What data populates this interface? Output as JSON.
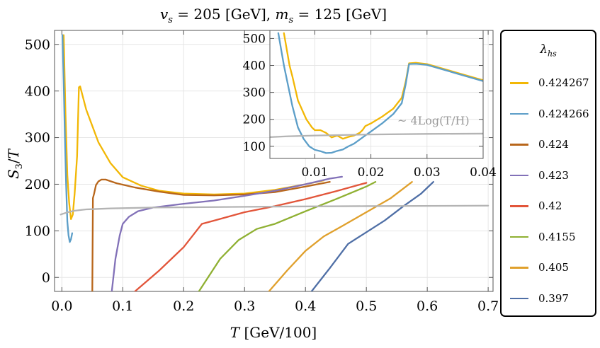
{
  "chart_data": [
    {
      "type": "line",
      "title": "v_s = 205 [GeV], m_s = 125 [GeV]",
      "title_parts": [
        "v",
        "s",
        " = 205 [GeV],  ",
        "m",
        "s",
        " = 125 [GeV]"
      ],
      "xlabel": "T [GeV/100]",
      "xlabel_parts": [
        "T",
        " [GeV/100]"
      ],
      "ylabel": "S_3/T",
      "ylabel_parts": [
        "S",
        "3",
        "/",
        "T"
      ],
      "xlim": [
        -0.012,
        0.708
      ],
      "ylim": [
        -30,
        530
      ],
      "xticks": [
        0.0,
        0.1,
        0.2,
        0.3,
        0.4,
        0.5,
        0.6,
        0.7
      ],
      "xtick_labels": [
        "0.0",
        "0.1",
        "0.2",
        "0.3",
        "0.4",
        "0.5",
        "0.6",
        "0.7"
      ],
      "yticks": [
        0,
        100,
        200,
        300,
        400,
        500
      ],
      "ytick_labels": [
        "0",
        "100",
        "200",
        "300",
        "400",
        "500"
      ],
      "grid": true,
      "legend": {
        "title": "λ_hs",
        "title_parts": [
          "λ",
          "hs"
        ],
        "placement": "right, outside plot"
      },
      "series": [
        {
          "name": "0.424267",
          "color": "#f2b705",
          "points": [
            [
              0.003,
              520
            ],
            [
              0.006,
              350
            ],
            [
              0.009,
              220
            ],
            [
              0.012,
              160
            ],
            [
              0.015,
              125
            ],
            [
              0.018,
              135
            ],
            [
              0.021,
              180
            ],
            [
              0.025,
              260
            ],
            [
              0.028,
              408
            ],
            [
              0.03,
              410
            ],
            [
              0.04,
              360
            ],
            [
              0.06,
              290
            ],
            [
              0.08,
              245
            ],
            [
              0.1,
              215
            ],
            [
              0.13,
              197
            ],
            [
              0.16,
              186
            ],
            [
              0.2,
              180
            ],
            [
              0.25,
              178
            ],
            [
              0.3,
              180
            ],
            [
              0.35,
              188
            ],
            [
              0.4,
              200
            ],
            [
              0.43,
              208
            ]
          ]
        },
        {
          "name": "0.424266",
          "color": "#5c9ec8",
          "points": [
            [
              0.001,
              520
            ],
            [
              0.003,
              420
            ],
            [
              0.005,
              300
            ],
            [
              0.007,
              200
            ],
            [
              0.009,
              120
            ],
            [
              0.011,
              90
            ],
            [
              0.013,
              76
            ],
            [
              0.015,
              82
            ],
            [
              0.017,
              95
            ]
          ]
        },
        {
          "name": "0.424",
          "color": "#b8661b",
          "points": [
            [
              0.05,
              -30
            ],
            [
              0.051,
              170
            ],
            [
              0.053,
              180
            ],
            [
              0.056,
              198
            ],
            [
              0.06,
              206
            ],
            [
              0.065,
              210
            ],
            [
              0.072,
              210
            ],
            [
              0.09,
              202
            ],
            [
              0.12,
              193
            ],
            [
              0.16,
              184
            ],
            [
              0.2,
              177
            ],
            [
              0.25,
              176
            ],
            [
              0.3,
              178
            ],
            [
              0.35,
              183
            ],
            [
              0.4,
              195
            ],
            [
              0.44,
              205
            ]
          ]
        },
        {
          "name": "0.423",
          "color": "#8271b8",
          "points": [
            [
              0.082,
              -30
            ],
            [
              0.088,
              40
            ],
            [
              0.095,
              90
            ],
            [
              0.1,
              115
            ],
            [
              0.11,
              130
            ],
            [
              0.125,
              142
            ],
            [
              0.15,
              150
            ],
            [
              0.2,
              158
            ],
            [
              0.25,
              165
            ],
            [
              0.3,
              175
            ],
            [
              0.35,
              186
            ],
            [
              0.4,
              200
            ],
            [
              0.44,
              212
            ],
            [
              0.46,
              216
            ]
          ]
        },
        {
          "name": "0.42",
          "color": "#e2553a",
          "points": [
            [
              0.12,
              -30
            ],
            [
              0.16,
              15
            ],
            [
              0.2,
              65
            ],
            [
              0.23,
              115
            ],
            [
              0.25,
              122
            ],
            [
              0.3,
              140
            ],
            [
              0.35,
              153
            ],
            [
              0.4,
              168
            ],
            [
              0.45,
              185
            ],
            [
              0.5,
              203
            ]
          ]
        },
        {
          "name": "0.4155",
          "color": "#8fb032",
          "points": [
            [
              0.225,
              -30
            ],
            [
              0.24,
              0
            ],
            [
              0.26,
              40
            ],
            [
              0.29,
              80
            ],
            [
              0.32,
              104
            ],
            [
              0.35,
              115
            ],
            [
              0.4,
              142
            ],
            [
              0.45,
              168
            ],
            [
              0.5,
              195
            ],
            [
              0.515,
              205
            ]
          ]
        },
        {
          "name": "0.405",
          "color": "#e0a02c",
          "points": [
            [
              0.34,
              -30
            ],
            [
              0.37,
              15
            ],
            [
              0.4,
              57
            ],
            [
              0.43,
              88
            ],
            [
              0.46,
              110
            ],
            [
              0.5,
              140
            ],
            [
              0.54,
              170
            ],
            [
              0.575,
              205
            ]
          ]
        },
        {
          "name": "0.397",
          "color": "#4f6fa6",
          "points": [
            [
              0.41,
              -30
            ],
            [
              0.44,
              20
            ],
            [
              0.47,
              72
            ],
            [
              0.5,
              97
            ],
            [
              0.53,
              122
            ],
            [
              0.56,
              152
            ],
            [
              0.59,
              180
            ],
            [
              0.61,
              205
            ]
          ]
        },
        {
          "name": "",
          "color": "#b4b4b4",
          "points": [
            [
              -0.002,
              135
            ],
            [
              0.005,
              138
            ],
            [
              0.01,
              140
            ],
            [
              0.02,
              143
            ],
            [
              0.04,
              146
            ],
            [
              0.08,
              148
            ],
            [
              0.15,
              150
            ],
            [
              0.25,
              151
            ],
            [
              0.35,
              152
            ],
            [
              0.5,
              153
            ],
            [
              0.7,
              154
            ]
          ]
        }
      ]
    },
    {
      "type": "line",
      "title": "",
      "xlim": [
        0.002,
        0.04
      ],
      "ylim": [
        55,
        530
      ],
      "xticks": [
        0.01,
        0.02,
        0.03,
        0.04
      ],
      "xtick_labels": [
        "0.01",
        "0.02",
        "0.03",
        "0.04"
      ],
      "yticks": [
        100,
        200,
        300,
        400,
        500
      ],
      "ytick_labels": [
        "100",
        "200",
        "300",
        "400",
        "500"
      ],
      "grid": true,
      "annotation": "~ 4Log(T/H)",
      "series": [
        {
          "name": "0.424267",
          "color": "#f2b705",
          "points": [
            [
              0.0045,
              520
            ],
            [
              0.0055,
              400
            ],
            [
              0.006,
              360
            ],
            [
              0.007,
              270
            ],
            [
              0.0085,
              200
            ],
            [
              0.0095,
              170
            ],
            [
              0.01,
              160
            ],
            [
              0.011,
              160
            ],
            [
              0.012,
              150
            ],
            [
              0.013,
              133
            ],
            [
              0.014,
              140
            ],
            [
              0.015,
              128
            ],
            [
              0.016,
              135
            ],
            [
              0.017,
              140
            ],
            [
              0.018,
              150
            ],
            [
              0.0185,
              160
            ],
            [
              0.019,
              175
            ],
            [
              0.02,
              185
            ],
            [
              0.022,
              210
            ],
            [
              0.024,
              240
            ],
            [
              0.0255,
              280
            ],
            [
              0.0262,
              340
            ],
            [
              0.0268,
              408
            ],
            [
              0.028,
              410
            ],
            [
              0.03,
              405
            ],
            [
              0.035,
              375
            ],
            [
              0.04,
              345
            ]
          ]
        },
        {
          "name": "0.424266",
          "color": "#5c9ec8",
          "points": [
            [
              0.0035,
              520
            ],
            [
              0.0045,
              400
            ],
            [
              0.005,
              350
            ],
            [
              0.006,
              250
            ],
            [
              0.007,
              170
            ],
            [
              0.008,
              128
            ],
            [
              0.009,
              100
            ],
            [
              0.01,
              87
            ],
            [
              0.011,
              82
            ],
            [
              0.012,
              75
            ],
            [
              0.013,
              76
            ],
            [
              0.014,
              83
            ],
            [
              0.015,
              88
            ],
            [
              0.016,
              100
            ],
            [
              0.017,
              110
            ],
            [
              0.018,
              125
            ],
            [
              0.019,
              140
            ],
            [
              0.02,
              155
            ],
            [
              0.022,
              185
            ],
            [
              0.024,
              220
            ],
            [
              0.0255,
              260
            ],
            [
              0.0262,
              330
            ],
            [
              0.0268,
              405
            ],
            [
              0.028,
              406
            ],
            [
              0.03,
              402
            ],
            [
              0.035,
              372
            ],
            [
              0.04,
              342
            ]
          ]
        },
        {
          "name": "",
          "color": "#b4b4b4",
          "points": [
            [
              0.002,
              134
            ],
            [
              0.005,
              137
            ],
            [
              0.01,
              140
            ],
            [
              0.02,
              144
            ],
            [
              0.03,
              146
            ],
            [
              0.04,
              147
            ]
          ]
        }
      ]
    }
  ]
}
